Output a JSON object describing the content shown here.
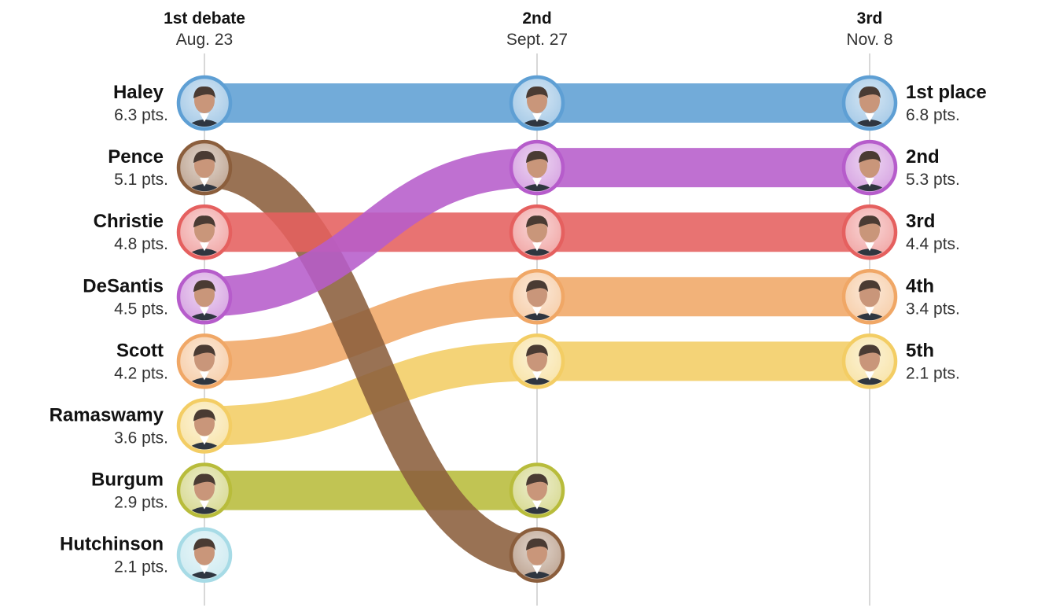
{
  "chart_data": {
    "type": "bump",
    "debates": [
      {
        "title": "1st debate",
        "date": "Aug. 23"
      },
      {
        "title": "2nd",
        "date": "Sept. 27"
      },
      {
        "title": "3rd",
        "date": "Nov. 8"
      }
    ],
    "place_labels": [
      "1st place",
      "2nd",
      "3rd",
      "4th",
      "5th"
    ],
    "candidates": [
      {
        "name": "Haley",
        "color": "#5e9fd4",
        "ranks": [
          1,
          1,
          1
        ],
        "first_points": "6.3 pts.",
        "final_points": "6.8 pts."
      },
      {
        "name": "Pence",
        "color": "#8b5e3c",
        "ranks": [
          2,
          8,
          null
        ],
        "first_points": "5.1 pts.",
        "final_points": null
      },
      {
        "name": "Christie",
        "color": "#e5605f",
        "ranks": [
          3,
          3,
          3
        ],
        "first_points": "4.8 pts.",
        "final_points": "4.4 pts."
      },
      {
        "name": "DeSantis",
        "color": "#b65ccb",
        "ranks": [
          4,
          2,
          2
        ],
        "first_points": "4.5 pts.",
        "final_points": "5.3 pts."
      },
      {
        "name": "Scott",
        "color": "#f0a766",
        "ranks": [
          5,
          4,
          4
        ],
        "first_points": "4.2 pts.",
        "final_points": "3.4 pts."
      },
      {
        "name": "Ramaswamy",
        "color": "#f3cd64",
        "ranks": [
          6,
          5,
          5
        ],
        "first_points": "3.6 pts.",
        "final_points": "2.1 pts."
      },
      {
        "name": "Burgum",
        "color": "#b8bc3b",
        "ranks": [
          7,
          7,
          null
        ],
        "first_points": "2.9 pts.",
        "final_points": null
      },
      {
        "name": "Hutchinson",
        "color": "#a7dbe6",
        "ranks": [
          8,
          null,
          null
        ],
        "first_points": "2.1 pts.",
        "final_points": null
      }
    ]
  }
}
